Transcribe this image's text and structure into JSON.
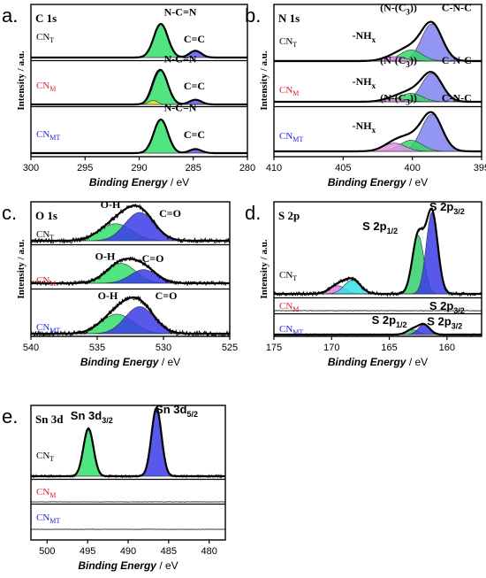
{
  "chart_data": [
    {
      "type": "line",
      "panel_letter": "a.",
      "title": "C 1s",
      "xlabel": "Binding Energy",
      "xlabel_unit": "/ eV",
      "ylabel": "Intensity / a.u.",
      "xlim": [
        300,
        280
      ],
      "xticks": [
        "300",
        "295",
        "290",
        "285",
        "280"
      ],
      "series": [
        {
          "name": "CN_T",
          "name_main": "CN",
          "name_sub": "T",
          "color": "#000000",
          "noise": 0.01,
          "peaks": [
            {
              "center": 288.0,
              "width": 0.65,
              "height": 1.0,
              "color": "#33e06c"
            },
            {
              "center": 284.8,
              "width": 0.55,
              "height": 0.2,
              "color": "#5a5ae6"
            }
          ],
          "annotations": [
            {
              "text": "N-C=N",
              "x": 286.2,
              "y": 1.25
            },
            {
              "text": "C=C",
              "x": 284.9,
              "y": 0.45
            }
          ]
        },
        {
          "name": "CN_M",
          "name_main": "CN",
          "name_sub": "M",
          "color": "#e02020",
          "noise": 0.01,
          "peaks": [
            {
              "center": 288.0,
              "width": 0.65,
              "height": 1.0,
              "color": "#33e06c"
            },
            {
              "center": 284.8,
              "width": 0.55,
              "height": 0.14,
              "color": "#5a5ae6"
            },
            {
              "center": 288.7,
              "width": 0.4,
              "height": 0.12,
              "color": "#f4e21c"
            }
          ],
          "annotations": [
            {
              "text": "N-C=N",
              "x": 286.2,
              "y": 1.25
            },
            {
              "text": "C=C",
              "x": 284.9,
              "y": 0.45
            }
          ]
        },
        {
          "name": "CN_MT",
          "name_main": "CN",
          "name_sub": "MT",
          "color": "#2525d8",
          "noise": 0.01,
          "peaks": [
            {
              "center": 288.0,
              "width": 0.65,
              "height": 1.0,
              "color": "#33e06c"
            },
            {
              "center": 284.8,
              "width": 0.55,
              "height": 0.12,
              "color": "#5a5ae6"
            }
          ],
          "annotations": [
            {
              "text": "N-C=N",
              "x": 286.2,
              "y": 1.25
            },
            {
              "text": "C=C",
              "x": 284.9,
              "y": 0.45
            }
          ]
        }
      ]
    },
    {
      "type": "line",
      "panel_letter": "b.",
      "title": "N 1s",
      "xlabel": "Binding Energy",
      "xlabel_unit": "/ eV",
      "ylabel": "Intensity / a.u.",
      "xlim": [
        410,
        395
      ],
      "xticks": [
        "410",
        "405",
        "400",
        "395"
      ],
      "series": [
        {
          "name": "CN_T",
          "name_main": "CN",
          "name_sub": "T",
          "color": "#000000",
          "noise": 0.01,
          "peaks": [
            {
              "center": 398.6,
              "width": 0.75,
              "height": 1.0,
              "color": "#7f82ee"
            },
            {
              "center": 400.1,
              "width": 0.8,
              "height": 0.3,
              "color": "#35d765"
            },
            {
              "center": 401.3,
              "width": 0.8,
              "height": 0.12,
              "color": "#e090e6"
            }
          ],
          "annotations": [
            {
              "text": "(N-(C",
              "sub": "3",
              "tail": "))",
              "x": 401.0,
              "y": 1.35
            },
            {
              "text": "C-N-C",
              "x": 396.8,
              "y": 1.35
            },
            {
              "text": "-NH",
              "sub": "x",
              "x": 403.5,
              "y": 0.6
            }
          ]
        },
        {
          "name": "CN_M",
          "name_main": "CN",
          "name_sub": "M",
          "color": "#e02020",
          "noise": 0.01,
          "peaks": [
            {
              "center": 398.6,
              "width": 0.75,
              "height": 1.0,
              "color": "#7f82ee"
            },
            {
              "center": 400.1,
              "width": 0.8,
              "height": 0.3,
              "color": "#35d765"
            },
            {
              "center": 401.3,
              "width": 0.8,
              "height": 0.12,
              "color": "#e090e6"
            }
          ],
          "annotations": [
            {
              "text": "(N-(C",
              "sub": "3",
              "tail": "))",
              "x": 401.0,
              "y": 1.35
            },
            {
              "text": "C-N-C",
              "x": 396.8,
              "y": 1.35
            },
            {
              "text": "-NH",
              "sub": "x",
              "x": 403.5,
              "y": 0.6
            }
          ]
        },
        {
          "name": "CN_MT",
          "name_main": "CN",
          "name_sub": "MT",
          "color": "#2525d8",
          "noise": 0.01,
          "peaks": [
            {
              "center": 398.6,
              "width": 0.75,
              "height": 1.0,
              "color": "#7f82ee"
            },
            {
              "center": 400.1,
              "width": 0.8,
              "height": 0.3,
              "color": "#35d765"
            },
            {
              "center": 401.3,
              "width": 0.8,
              "height": 0.22,
              "color": "#e090e6"
            }
          ],
          "annotations": [
            {
              "text": "(N-(C",
              "sub": "3",
              "tail": "))",
              "x": 401.0,
              "y": 1.35
            },
            {
              "text": "C-N-C",
              "x": 396.8,
              "y": 1.35
            },
            {
              "text": "-NH",
              "sub": "x",
              "x": 403.5,
              "y": 0.6
            }
          ]
        }
      ]
    },
    {
      "type": "line",
      "panel_letter": "c.",
      "title": "O 1s",
      "xlabel": "Binding Energy",
      "xlabel_unit": "/ eV",
      "ylabel": "Intensity / a.u.",
      "xlim": [
        540,
        525
      ],
      "xticks": [
        "540",
        "535",
        "530",
        "525"
      ],
      "series": [
        {
          "name": "CN_T",
          "name_main": "CN",
          "name_sub": "T",
          "color": "#000000",
          "noise": 0.09,
          "peaks": [
            {
              "center": 533.6,
              "width": 1.2,
              "height": 0.6,
              "color": "#33e06c"
            },
            {
              "center": 531.8,
              "width": 1.1,
              "height": 1.0,
              "color": "#3b3be8"
            }
          ],
          "annotations": [
            {
              "text": "O-H",
              "x": 534.0,
              "y": 1.15
            },
            {
              "text": "C=O",
              "x": 529.5,
              "y": 0.85
            }
          ]
        },
        {
          "name": "CN_M",
          "name_main": "CN",
          "name_sub": "M",
          "color": "#e02020",
          "noise": 0.09,
          "peaks": [
            {
              "center": 533.2,
              "width": 1.1,
              "height": 0.8,
              "color": "#33e06c"
            },
            {
              "center": 531.5,
              "width": 1.0,
              "height": 0.55,
              "color": "#3b3be8"
            }
          ],
          "annotations": [
            {
              "text": "O-H",
              "x": 534.4,
              "y": 0.95
            },
            {
              "text": "C=O",
              "x": 530.8,
              "y": 0.85
            }
          ]
        },
        {
          "name": "CN_MT",
          "name_main": "CN",
          "name_sub": "MT",
          "color": "#2525d8",
          "noise": 0.09,
          "peaks": [
            {
              "center": 533.5,
              "width": 1.2,
              "height": 0.65,
              "color": "#33e06c"
            },
            {
              "center": 531.8,
              "width": 1.1,
              "height": 0.9,
              "color": "#3b3be8"
            }
          ],
          "annotations": [
            {
              "text": "O-H",
              "x": 534.2,
              "y": 1.15
            },
            {
              "text": "C=O",
              "x": 529.8,
              "y": 1.15
            }
          ]
        }
      ]
    },
    {
      "type": "line",
      "panel_letter": "d.",
      "title": "S 2p",
      "xlabel": "Binding Energy",
      "xlabel_unit": "/ eV",
      "ylabel": "Intensity / a.u.",
      "xlim": [
        175,
        157
      ],
      "xticks": [
        "175",
        "170",
        "165",
        "160"
      ],
      "series": [
        {
          "name": "CN_T",
          "name_main": "CN",
          "name_sub": "T",
          "color": "#000000",
          "noise": 0.025,
          "peaks": [
            {
              "center": 169.5,
              "width": 0.7,
              "height": 0.1,
              "color": "#e57be8"
            },
            {
              "center": 168.2,
              "width": 0.7,
              "height": 0.17,
              "color": "#33e3e8"
            },
            {
              "center": 162.5,
              "width": 0.5,
              "height": 0.72,
              "color": "#33d06c"
            },
            {
              "center": 161.3,
              "width": 0.5,
              "height": 1.0,
              "color": "#3b3be8"
            }
          ],
          "annotations": [
            {
              "text": "S 2p",
              "sub": "1/2",
              "x": 165.8,
              "y": 0.78
            },
            {
              "text": "S 2p",
              "sub": "3/2",
              "x": 160.0,
              "y": 1.02
            }
          ]
        },
        {
          "name": "CN_M",
          "name_main": "CN",
          "name_sub": "M",
          "color": "#e02020",
          "noise": 0.025,
          "peaks": [],
          "annotations": [
            {
              "text": "S 2p",
              "sub": "3/2",
              "x": 160.0,
              "y": 0.1
            }
          ]
        },
        {
          "name": "CN_MT",
          "name_main": "CN",
          "name_sub": "MT",
          "color": "#2525d8",
          "noise": 0.025,
          "peaks": [
            {
              "center": 163.0,
              "width": 0.5,
              "height": 0.14,
              "color": "#33d06c"
            },
            {
              "center": 162.0,
              "width": 0.5,
              "height": 0.28,
              "color": "#3b3be8"
            }
          ],
          "annotations": [
            {
              "text": "S 2p",
              "sub": "1/2",
              "x": 165.0,
              "y": 0.3
            },
            {
              "text": "S 2p",
              "sub": "3/2",
              "x": 160.2,
              "y": 0.26
            }
          ]
        }
      ]
    },
    {
      "type": "line",
      "panel_letter": "e.",
      "title": "Sn 3d",
      "xlabel": "Binding Energy",
      "xlabel_unit": "/ eV",
      "ylabel": "",
      "xlim": [
        502,
        478
      ],
      "xticks": [
        "500",
        "495",
        "490",
        "485",
        "480"
      ],
      "series": [
        {
          "name": "CN_T",
          "name_main": "CN",
          "name_sub": "T",
          "color": "#000000",
          "noise": 0.02,
          "peaks": [
            {
              "center": 494.9,
              "width": 0.62,
              "height": 0.7,
              "color": "#33e06c"
            },
            {
              "center": 486.5,
              "width": 0.62,
              "height": 1.0,
              "color": "#3b3be8"
            }
          ],
          "annotations": [
            {
              "text": "Sn 3d",
              "sub": "3/2",
              "x": 494.5,
              "y": 0.83
            },
            {
              "text": "Sn 3d",
              "sub": "5/2",
              "x": 484.0,
              "y": 0.92
            }
          ]
        },
        {
          "name": "CN_M",
          "name_main": "CN",
          "name_sub": "M",
          "color": "#e02020",
          "noise": 0.02,
          "peaks": [],
          "annotations": []
        },
        {
          "name": "CN_MT",
          "name_main": "CN",
          "name_sub": "MT",
          "color": "#2525d8",
          "noise": 0.02,
          "peaks": [],
          "annotations": []
        }
      ]
    }
  ]
}
